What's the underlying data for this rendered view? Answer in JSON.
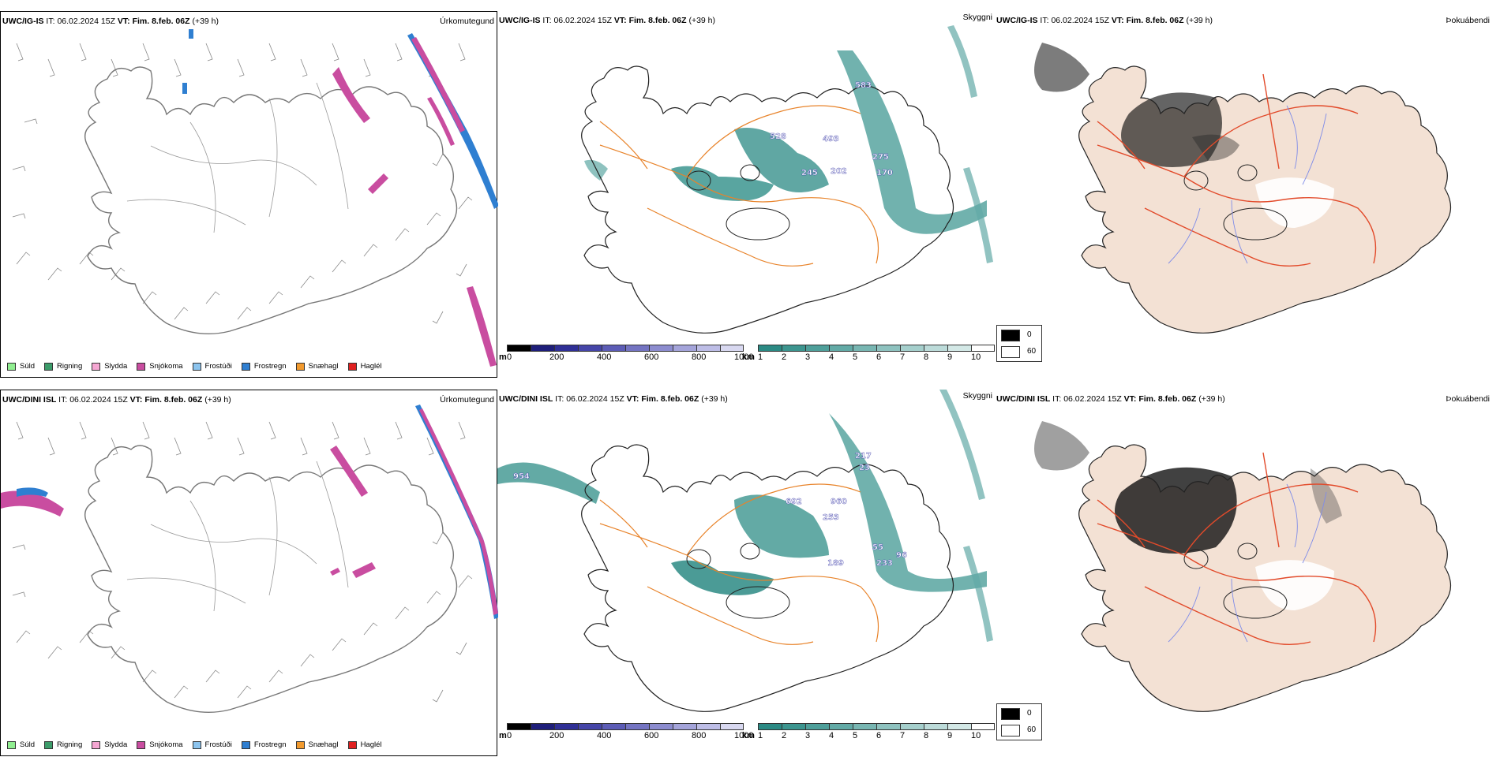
{
  "rows": [
    {
      "model": "UWC/IG-IS",
      "it_label": "IT:",
      "it_value": "06.02.2024 15Z",
      "vt_label": "VT:",
      "vt_value": "Fim. 8.feb. 06Z",
      "lead": "(+39 h)",
      "cloud_labels": [
        "583",
        "528",
        "493",
        "245",
        "202",
        "275",
        "170"
      ]
    },
    {
      "model": "UWC/DINI ISL",
      "it_label": "IT:",
      "it_value": "06.02.2024 15Z",
      "vt_label": "VT:",
      "vt_value": "Fim. 8.feb. 06Z",
      "lead": "(+39 h)",
      "cloud_labels": [
        "954",
        "217",
        "23",
        "692",
        "960",
        "253",
        "189",
        "55",
        "233",
        "96"
      ]
    }
  ],
  "panel_titles": {
    "precip": "Úrkomutegund",
    "visibility": "Skyggni",
    "fog": "Þokuábendi"
  },
  "precip_legend": [
    {
      "label": "Súld",
      "color": "#90ee90"
    },
    {
      "label": "Rigning",
      "color": "#3c9c6a"
    },
    {
      "label": "Slydda",
      "color": "#f5a6d2"
    },
    {
      "label": "Snjókoma",
      "color": "#c94da0"
    },
    {
      "label": "Frostúði",
      "color": "#8cc4ee"
    },
    {
      "label": "Frostregn",
      "color": "#2f7fd1"
    },
    {
      "label": "Snæhagl",
      "color": "#f29a2e"
    },
    {
      "label": "Haglél",
      "color": "#e02020"
    }
  ],
  "height_bar": {
    "unit": "m",
    "ticks": [
      "0",
      "200",
      "400",
      "600",
      "800",
      "1000"
    ],
    "colors": [
      "#000000",
      "#1e1e7a",
      "#2f2f96",
      "#4545a8",
      "#5c5cb6",
      "#7474c2",
      "#8c8ccf",
      "#a4a4da",
      "#bdbde6",
      "#d8d8f0"
    ]
  },
  "vis_bar": {
    "unit": "km",
    "ticks": [
      "1",
      "2",
      "3",
      "4",
      "5",
      "6",
      "7",
      "8",
      "9",
      "10"
    ],
    "colors": [
      "#2b8a84",
      "#3c958f",
      "#4e9f9a",
      "#62aaa6",
      "#78b6b2",
      "#8ec2bf",
      "#a5cfcc",
      "#bcdbd9",
      "#d3e8e6",
      "#ffffff"
    ]
  },
  "fog_legend": [
    {
      "label": "0",
      "color": "#000000"
    },
    {
      "label": "60",
      "color": "#ffffff"
    }
  ]
}
